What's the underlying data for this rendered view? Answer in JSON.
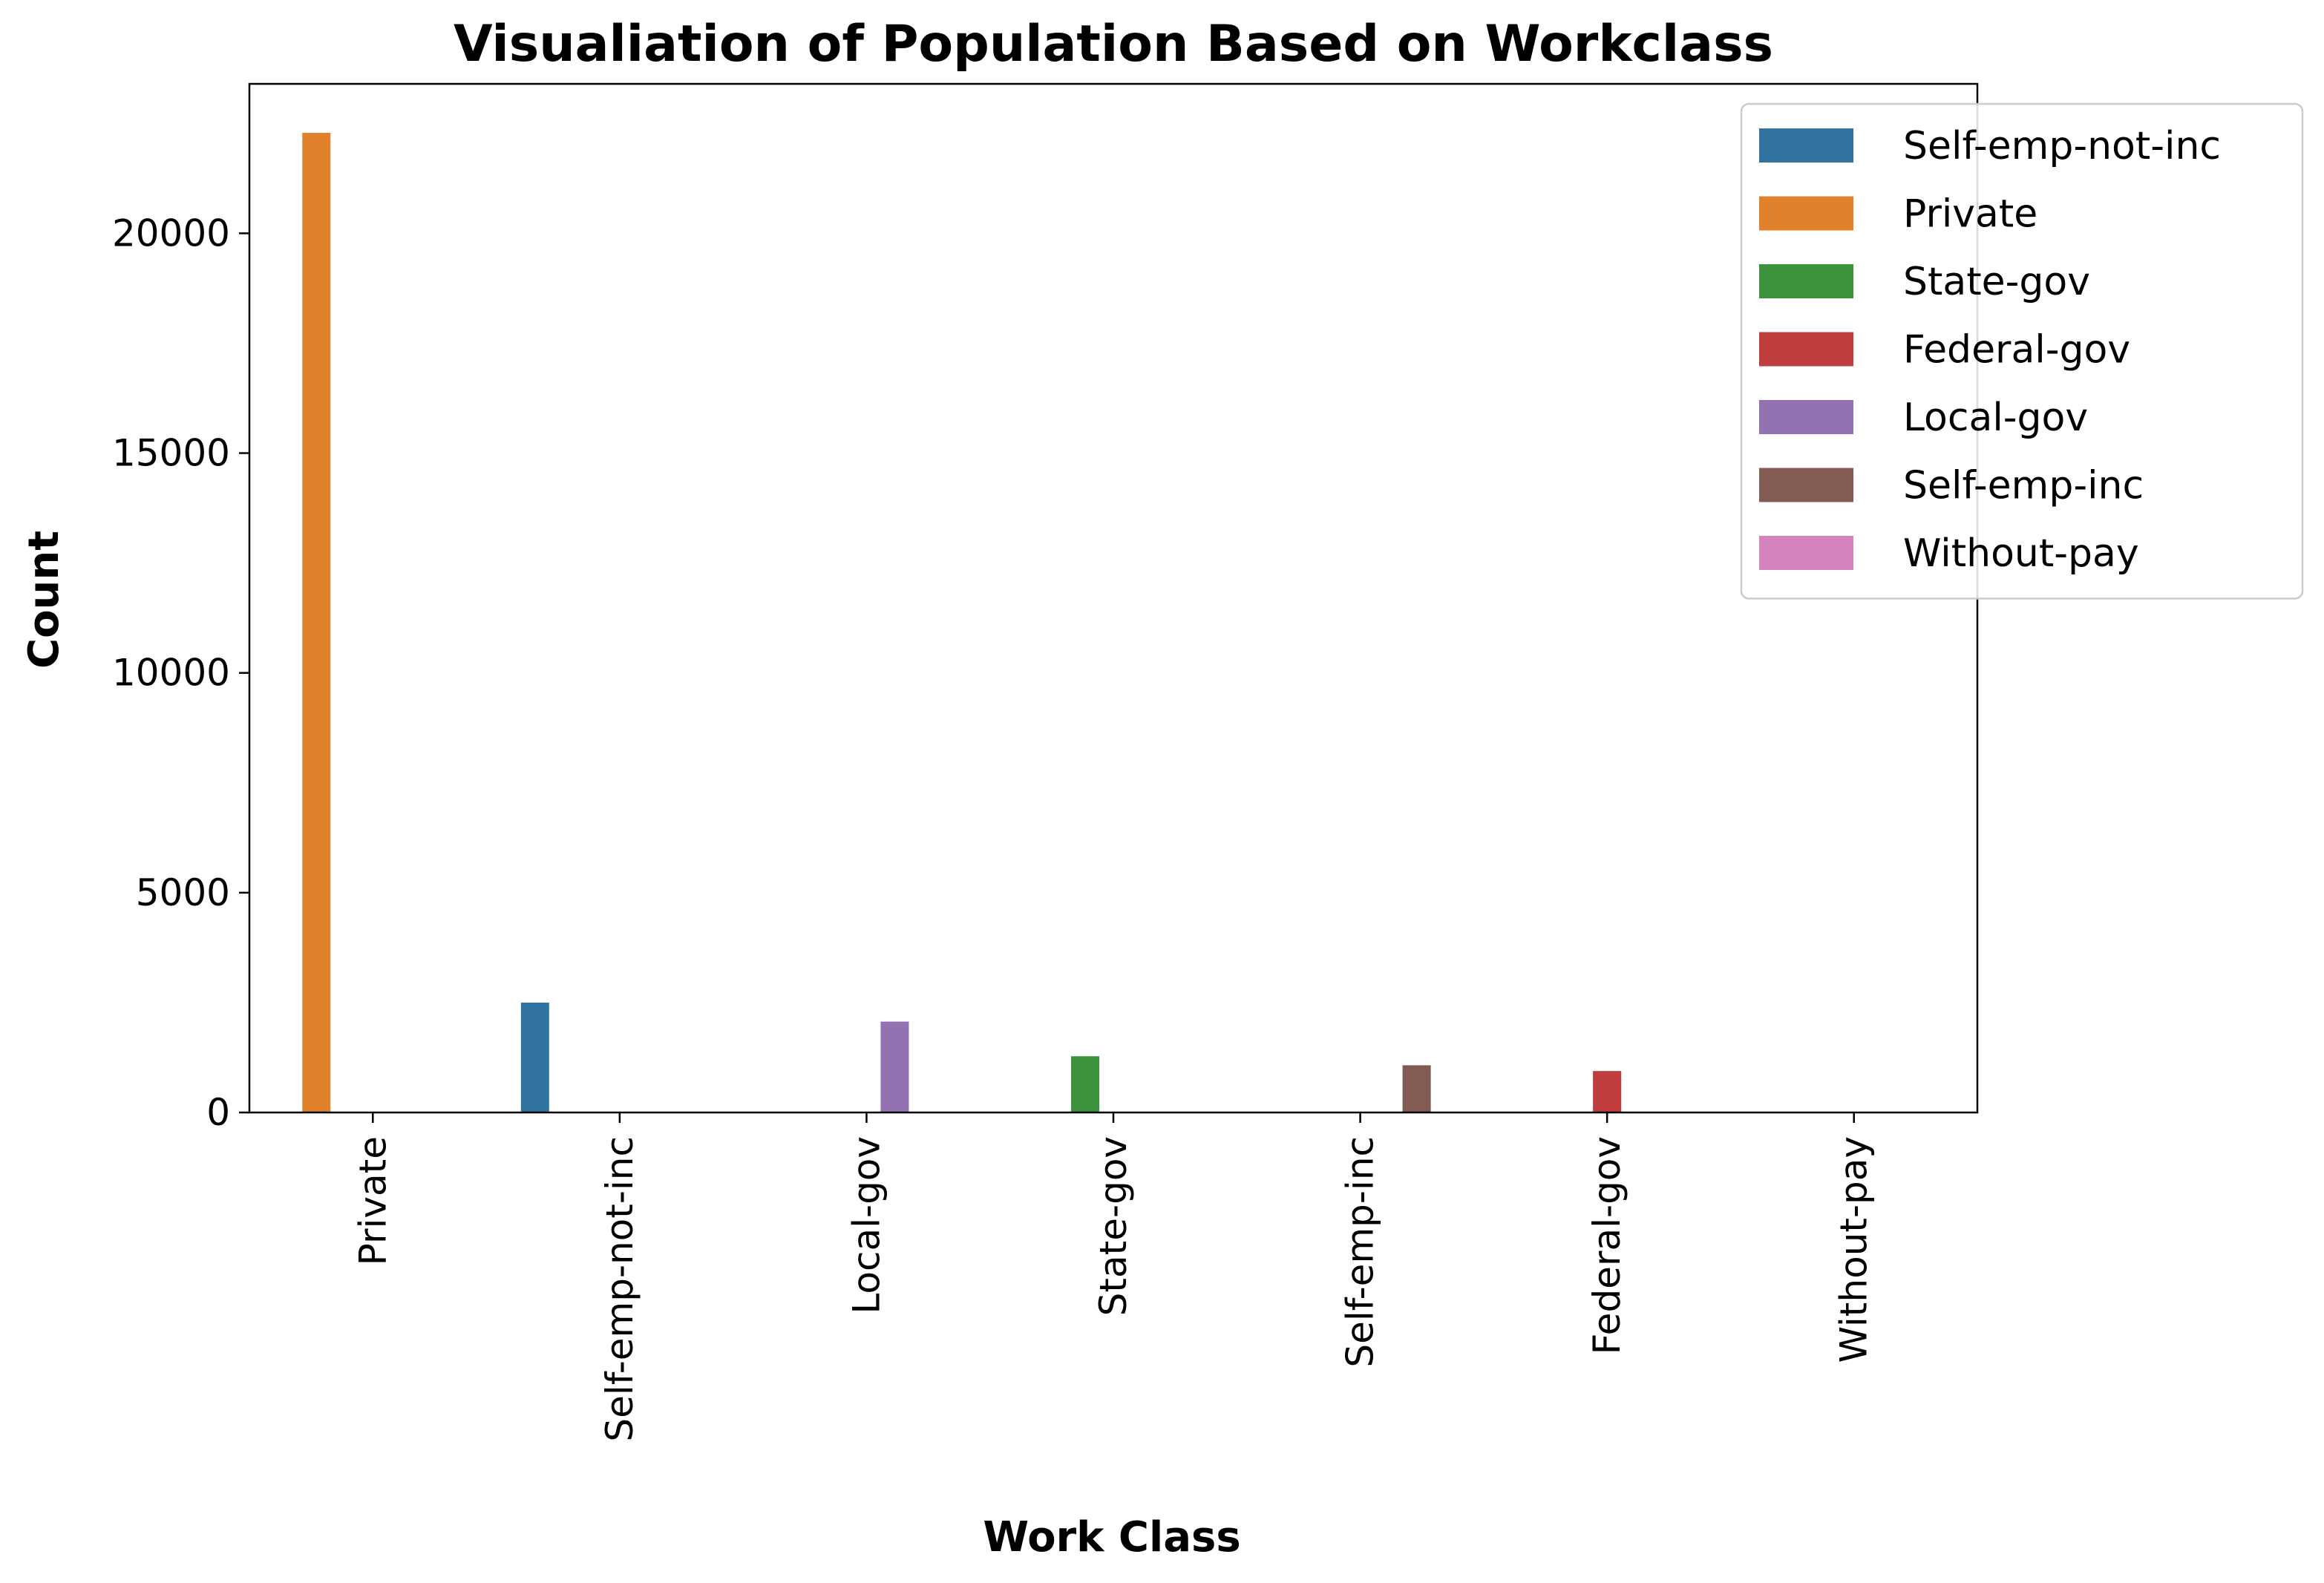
{
  "chart_data": {
    "type": "bar",
    "title": "Visualiation of Population Based on Workclass",
    "xlabel": "Work Class",
    "ylabel": "Count",
    "categories": [
      "Private",
      "Self-emp-not-inc",
      "Local-gov",
      "State-gov",
      "Self-emp-inc",
      "Federal-gov",
      "Without-pay"
    ],
    "hue_order": [
      "Self-emp-not-inc",
      "Private",
      "State-gov",
      "Federal-gov",
      "Local-gov",
      "Self-emp-inc",
      "Without-pay"
    ],
    "series": [
      {
        "name": "Self-emp-not-inc",
        "color": "#3274a1",
        "values": [
          0,
          2499,
          0,
          0,
          0,
          0,
          0
        ]
      },
      {
        "name": "Private",
        "color": "#e1812c",
        "values": [
          22286,
          0,
          0,
          0,
          0,
          0,
          0
        ]
      },
      {
        "name": "State-gov",
        "color": "#3a923a",
        "values": [
          0,
          0,
          0,
          1279,
          0,
          0,
          0
        ]
      },
      {
        "name": "Federal-gov",
        "color": "#c03d3e",
        "values": [
          0,
          0,
          0,
          0,
          0,
          943,
          0
        ]
      },
      {
        "name": "Local-gov",
        "color": "#9372b2",
        "values": [
          0,
          0,
          2067,
          0,
          0,
          0,
          0
        ]
      },
      {
        "name": "Self-emp-inc",
        "color": "#845b53",
        "values": [
          0,
          0,
          0,
          0,
          1074,
          0,
          0
        ]
      },
      {
        "name": "Without-pay",
        "color": "#d684bd",
        "values": [
          0,
          0,
          0,
          0,
          0,
          0,
          14
        ]
      }
    ],
    "yticks": [
      0,
      5000,
      10000,
      15000,
      20000
    ],
    "ylim": [
      0,
      23400
    ],
    "grid": false,
    "legend_position": "top-right"
  }
}
